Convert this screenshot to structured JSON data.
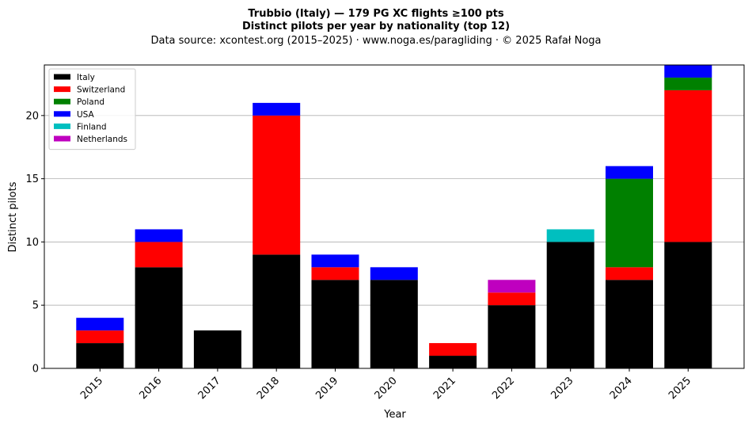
{
  "chart_data": {
    "type": "bar",
    "stacked": true,
    "title": "Trubbio (Italy)  —  179 PG XC flights ≥100 pts",
    "subtitle": "Distinct pilots per year by nationality (top 12)",
    "caption": "Data source: xcontest.org (2015–2025)  ·  www.noga.es/paragliding  ·  © 2025 Rafał Noga",
    "xlabel": "Year",
    "ylabel": "Distinct pilots",
    "ylim": [
      0,
      24
    ],
    "yticks": [
      "0",
      "5",
      "10",
      "15",
      "20"
    ],
    "grid": "y",
    "legend_position": "top-left",
    "categories": [
      "2015",
      "2016",
      "2017",
      "2018",
      "2019",
      "2020",
      "2021",
      "2022",
      "2023",
      "2024",
      "2025"
    ],
    "series": [
      {
        "name": "Italy",
        "color": "#000000",
        "values": [
          2,
          8,
          3,
          9,
          7,
          7,
          1,
          5,
          10,
          7,
          10
        ]
      },
      {
        "name": "Switzerland",
        "color": "#ff0000",
        "values": [
          1,
          2,
          0,
          11,
          1,
          0,
          1,
          1,
          0,
          1,
          12
        ]
      },
      {
        "name": "Poland",
        "color": "#008000",
        "values": [
          0,
          0,
          0,
          0,
          0,
          0,
          0,
          0,
          0,
          7,
          1
        ]
      },
      {
        "name": "USA",
        "color": "#0000ff",
        "values": [
          1,
          1,
          0,
          1,
          1,
          1,
          0,
          0,
          0,
          1,
          1
        ]
      },
      {
        "name": "Finland",
        "color": "#00bfbf",
        "values": [
          0,
          0,
          0,
          0,
          0,
          0,
          0,
          0,
          1,
          0,
          0
        ]
      },
      {
        "name": "Netherlands",
        "color": "#bf00bf",
        "values": [
          0,
          0,
          0,
          0,
          0,
          0,
          0,
          1,
          0,
          0,
          0
        ]
      }
    ]
  }
}
